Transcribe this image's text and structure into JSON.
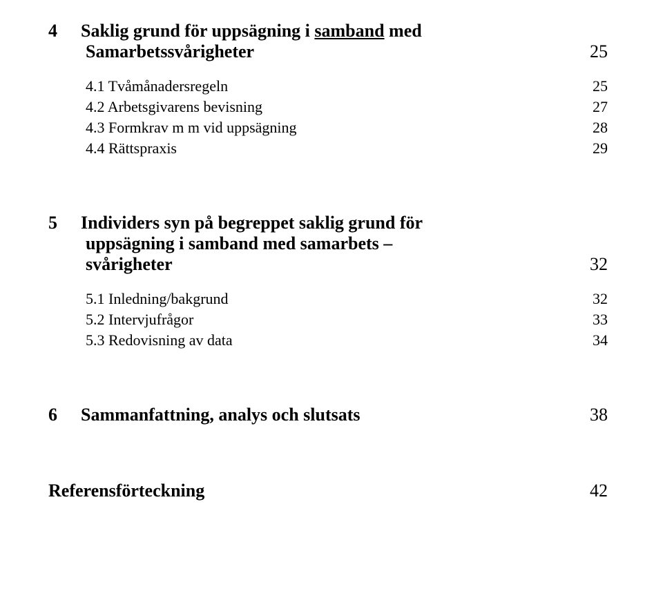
{
  "section4": {
    "num": "4",
    "title_line1_pre": "Saklig grund för uppsägning i ",
    "title_line1_underlined": "samband",
    "title_line1_post": " med",
    "title_line2": "Samarbetssvårigheter",
    "page": "25",
    "subs": [
      {
        "label": "4.1 Tvåmånadersregeln",
        "page": "25"
      },
      {
        "label": "4.2 Arbetsgivarens bevisning",
        "page": "27"
      },
      {
        "label": "4.3 Formkrav m m vid uppsägning",
        "page": "28"
      },
      {
        "label": "4.4 Rättspraxis",
        "page": "29"
      }
    ]
  },
  "section5": {
    "num": "5",
    "title_line1": "Individers syn på begreppet saklig grund för",
    "title_line2": "uppsägning i samband med samarbets –",
    "title_line3": "svårigheter",
    "page": "32",
    "subs": [
      {
        "label": "5.1 Inledning/bakgrund",
        "page": "32"
      },
      {
        "label": "5.2 Intervjufrågor",
        "page": "33"
      },
      {
        "label": "5.3 Redovisning av data",
        "page": "34"
      }
    ]
  },
  "section6": {
    "num": "6",
    "title": "Sammanfattning, analys och slutsats",
    "page": "38"
  },
  "refs": {
    "title": "Referensförteckning",
    "page": "42"
  }
}
